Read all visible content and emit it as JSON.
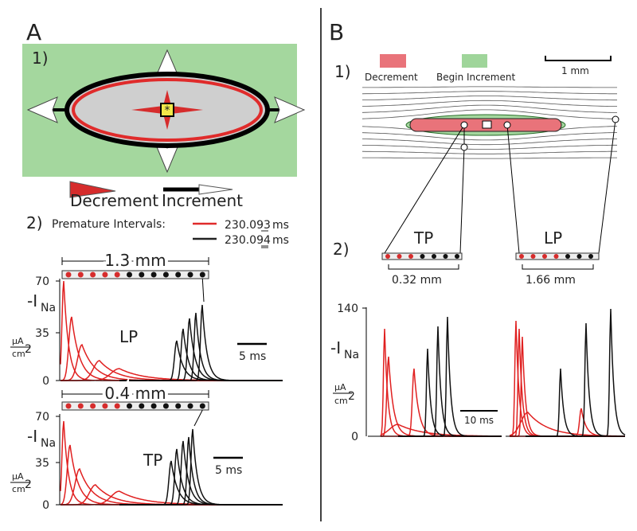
{
  "panel_a": {
    "label": "A",
    "part1": {
      "label": "1)"
    },
    "legend": {
      "decrement": "Decrement",
      "increment": "Increment"
    },
    "part2": {
      "label": "2)",
      "premature_intervals": "Premature Intervals:",
      "intervals": [
        {
          "value": "230.093",
          "unit": "ms"
        },
        {
          "value": "230.094",
          "unit": "ms"
        }
      ]
    },
    "plots": [
      {
        "scale": "1.3 mm",
        "yticks": [
          "70",
          "35",
          "0"
        ],
        "ylabel": "-I",
        "ylabel_sub": "Na",
        "unit_num": "µA",
        "unit_den": "cm",
        "unit_exp": "2",
        "name": "LP",
        "time_scale": "5 ms"
      },
      {
        "scale": "0.4 mm",
        "yticks": [
          "70",
          "35",
          "0"
        ],
        "ylabel": "-I",
        "ylabel_sub": "Na",
        "unit_num": "µA",
        "unit_den": "cm",
        "unit_exp": "2",
        "name": "TP",
        "time_scale": "5 ms"
      }
    ]
  },
  "panel_b": {
    "label": "B",
    "part1": {
      "label": "1)",
      "legend": {
        "decrement": "Decrement",
        "begin_increment": "Begin Increment"
      },
      "scale": "1 mm"
    },
    "part2": {
      "label": "2)",
      "tp": {
        "name": "TP",
        "scale": "0.32 mm"
      },
      "lp": {
        "name": "LP",
        "scale": "1.66 mm"
      }
    },
    "plot": {
      "yticks": [
        "140",
        "0"
      ],
      "ylabel": "-I",
      "ylabel_sub": "Na",
      "unit_num": "µA",
      "unit_den": "cm",
      "unit_exp": "2",
      "time_scale": "10 ms"
    }
  }
}
